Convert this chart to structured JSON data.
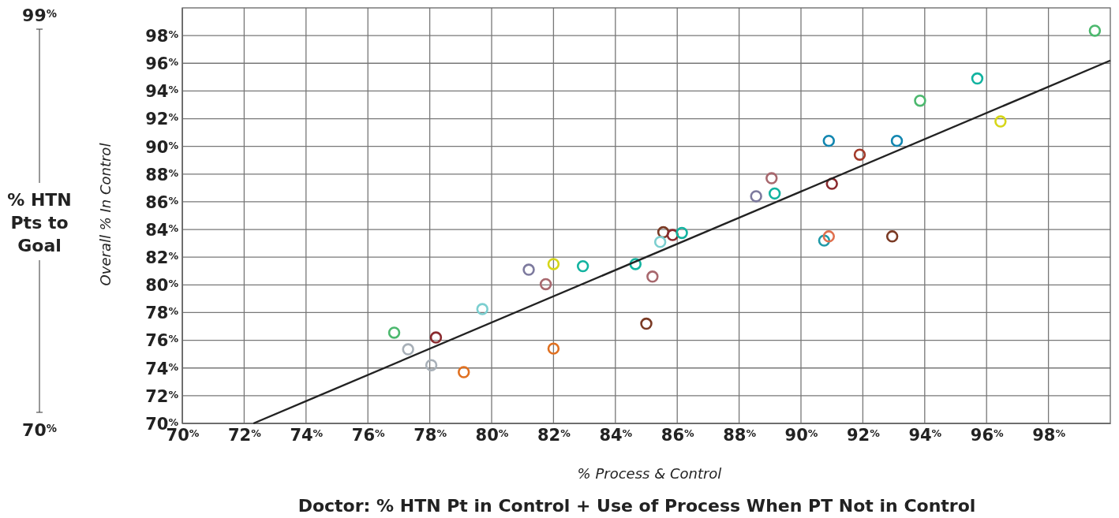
{
  "chart_data": {
    "type": "scatter",
    "title": "Doctor: % HTN Pt in Control + Use of Process When PT Not in Control",
    "xlabel": "% Process & Control",
    "ylabel": "Overall % In Control",
    "annotations": [
      "99$^{%}$",
      "% HTN Pts to Goal",
      "70$^{%}$"
    ],
    "xlim": [
      70,
      100
    ],
    "ylim": [
      70,
      100
    ],
    "xticks": [
      {
        "value": 70,
        "label": "70$^{%}$"
      },
      {
        "value": 72,
        "label": "72$^{%}$"
      },
      {
        "value": 74,
        "label": "74$^{%}$"
      },
      {
        "value": 76,
        "label": "76$^{%}$"
      },
      {
        "value": 78,
        "label": "78$^{%}$"
      },
      {
        "value": 80,
        "label": "80$^{%}$"
      },
      {
        "value": 82,
        "label": "82$^{%}$"
      },
      {
        "value": 84,
        "label": "84$^{%}$"
      },
      {
        "value": 86,
        "label": "86$^{%}$"
      },
      {
        "value": 88,
        "label": "88$^{%}$"
      },
      {
        "value": 90,
        "label": "90$^{%}$"
      },
      {
        "value": 92,
        "label": "92$^{%}$"
      },
      {
        "value": 94,
        "label": "94$^{%}$"
      },
      {
        "value": 96,
        "label": "96$^{%}$"
      },
      {
        "value": 98,
        "label": "98$^{%}$"
      }
    ],
    "yticks": [
      {
        "value": 70,
        "label": "70$^{%}$"
      },
      {
        "value": 72,
        "label": "72$^{%}$"
      },
      {
        "value": 74,
        "label": "74$^{%}$"
      },
      {
        "value": 76,
        "label": "76$^{%}$"
      },
      {
        "value": 78,
        "label": "78$^{%}$"
      },
      {
        "value": 80,
        "label": "80$^{%}$"
      },
      {
        "value": 82,
        "label": "82$^{%}$"
      },
      {
        "value": 84,
        "label": "84$^{%}$"
      },
      {
        "value": 86,
        "label": "86$^{%}$"
      },
      {
        "value": 88,
        "label": "88$^{%}$"
      },
      {
        "value": 90,
        "label": "90$^{%}$"
      },
      {
        "value": 92,
        "label": "92$^{%}$"
      },
      {
        "value": 94,
        "label": "94$^{%}$"
      },
      {
        "value": 96,
        "label": "96$^{%}$"
      },
      {
        "value": 98,
        "label": "98$^{%}$"
      }
    ],
    "grid": true,
    "series": [
      {
        "marker": "circle",
        "x": [
          99.5,
          95.7,
          93.85,
          96.45,
          90.9,
          93.1,
          91.9,
          89.05,
          91.0,
          88.55,
          89.15,
          85.55,
          85.85,
          86.15,
          85.45,
          90.75,
          90.9,
          92.95,
          81.2,
          82.0,
          82.95,
          81.75,
          84.65,
          85.2,
          79.7,
          85.0,
          82.0,
          76.85,
          78.2,
          77.3,
          78.05,
          79.1
        ],
        "values": [
          98.35,
          94.9,
          93.3,
          91.8,
          90.4,
          90.4,
          89.4,
          87.7,
          87.3,
          86.4,
          86.6,
          83.8,
          83.6,
          83.75,
          83.1,
          83.2,
          83.5,
          83.5,
          81.1,
          81.5,
          81.35,
          80.05,
          81.5,
          80.6,
          78.25,
          77.2,
          75.4,
          76.55,
          76.2,
          75.35,
          74.2,
          73.7
        ],
        "colors": [
          "#4cb86e",
          "#12b3a0",
          "#4cb86e",
          "#d6d619",
          "#1186b0",
          "#1186b0",
          "#a33a2a",
          "#a8686e",
          "#8a2a2e",
          "#7d7a9e",
          "#12b3a0",
          "#7a3a24",
          "#8a2a2e",
          "#12b3a0",
          "#7ccfd0",
          "#1f9aa8",
          "#e0704e",
          "#7a3a24",
          "#7d7a9e",
          "#d6d619",
          "#12b3a0",
          "#a8686e",
          "#12b3a0",
          "#a8686e",
          "#7ccfd0",
          "#7a3a24",
          "#e07020",
          "#4cb86e",
          "#8a2a2e",
          "#a8b0b8",
          "#a8b0b8",
          "#e07020"
        ]
      },
      {
        "type": "line",
        "color": "#222222",
        "x": [
          72.3,
          100
        ],
        "values": [
          70,
          96.2
        ]
      }
    ]
  }
}
